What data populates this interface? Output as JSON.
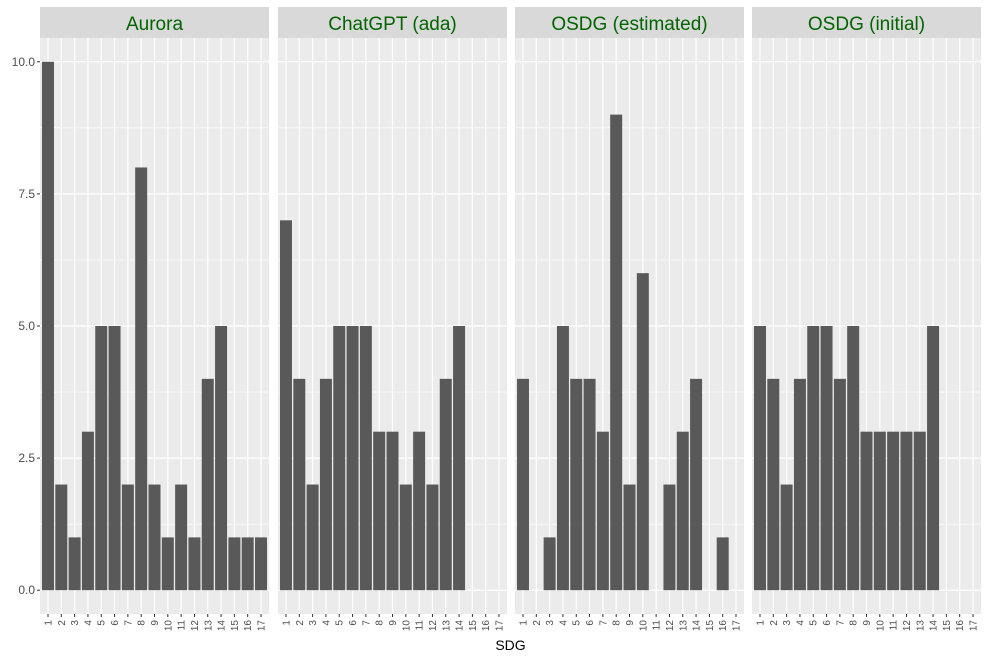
{
  "colors": {
    "panel_bg": "#ebebeb",
    "strip_bg": "#d9d9d9",
    "strip_text": "#006400",
    "gridline": "#ffffff",
    "bar": "#595959",
    "tick_text": "#4d4d4d"
  },
  "chart_data": {
    "type": "bar",
    "faceted": true,
    "xlabel": "SDG",
    "ylabel": "",
    "ylim": [
      -0.45,
      10.45
    ],
    "y_ticks": [
      0.0,
      2.5,
      5.0,
      7.5,
      10.0
    ],
    "y_tick_labels": [
      "0.0",
      "2.5",
      "5.0",
      "7.5",
      "10.0"
    ],
    "grid": true,
    "categories": [
      "1",
      "2",
      "3",
      "4",
      "5",
      "6",
      "7",
      "8",
      "9",
      "10",
      "11",
      "12",
      "13",
      "14",
      "15",
      "16",
      "17"
    ],
    "panels": [
      {
        "name": "Aurora",
        "values": [
          10,
          2,
          1,
          3,
          5,
          5,
          2,
          8,
          2,
          1,
          2,
          1,
          4,
          5,
          1,
          1,
          1
        ]
      },
      {
        "name": "ChatGPT (ada)",
        "values": [
          7,
          4,
          2,
          4,
          5,
          5,
          5,
          3,
          3,
          2,
          3,
          2,
          4,
          5,
          0,
          0,
          0
        ]
      },
      {
        "name": "OSDG (estimated)",
        "values": [
          4,
          0,
          1,
          5,
          4,
          4,
          3,
          9,
          2,
          6,
          0,
          2,
          3,
          4,
          0,
          1,
          0
        ]
      },
      {
        "name": "OSDG (initial)",
        "values": [
          5,
          4,
          2,
          4,
          5,
          5,
          4,
          5,
          3,
          3,
          3,
          3,
          3,
          5,
          0,
          0,
          0
        ]
      }
    ]
  }
}
